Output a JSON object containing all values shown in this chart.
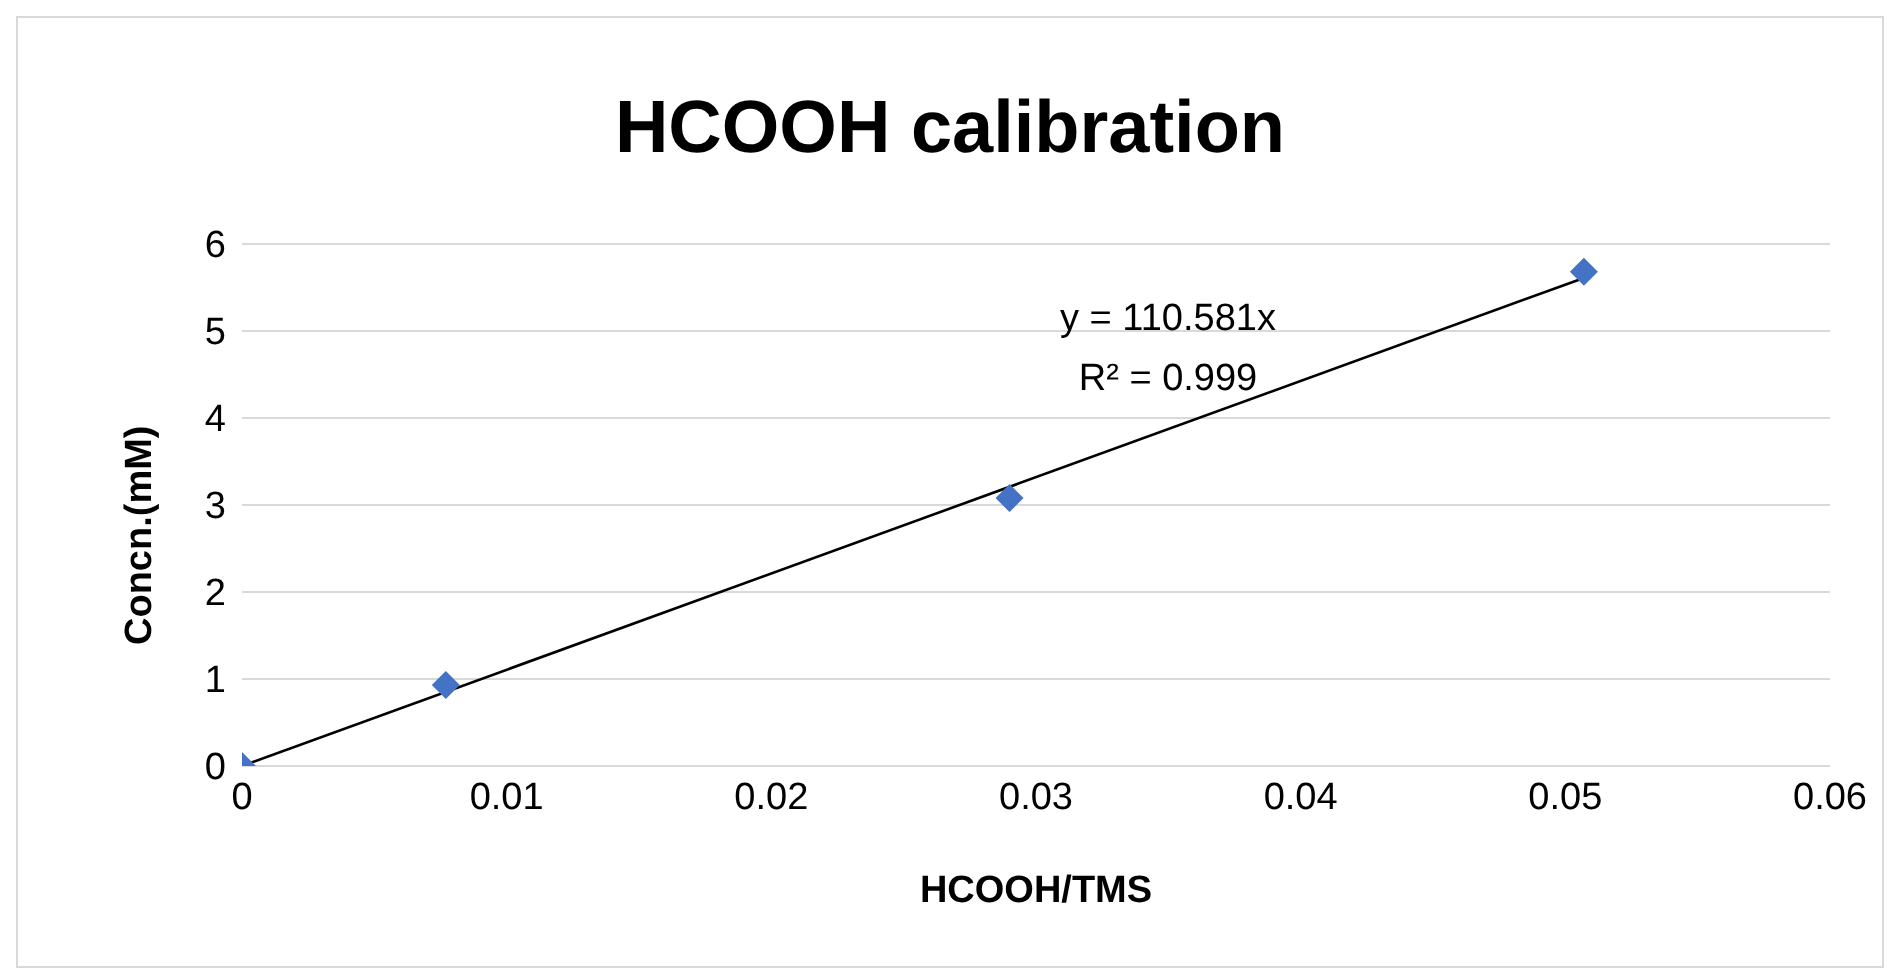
{
  "chart_data": {
    "type": "scatter",
    "title": "HCOOH calibration",
    "xlabel": "HCOOH/TMS",
    "ylabel": "Concn.(mM)",
    "series": [
      {
        "color": "#4472c4",
        "x": [
          0,
          0.0077,
          0.029,
          0.0507
        ],
        "values": [
          0,
          0.93,
          3.08,
          5.68
        ],
        "marker": "diamond"
      },
      {
        "type": "line",
        "color": "#000000",
        "x": [
          0,
          0.0507
        ],
        "values": [
          0,
          5.61
        ],
        "marker": "none",
        "line_style": "solid"
      }
    ],
    "annotations": [
      "y = 110.581x",
      "R² = 0.999"
    ],
    "xlim": [
      0,
      0.06
    ],
    "xticks": [
      0,
      0.01,
      0.02,
      0.03,
      0.04,
      0.05,
      0.06
    ],
    "ylim": [
      0,
      6
    ],
    "yticks": [
      0,
      1,
      2,
      3,
      4,
      5,
      6
    ],
    "grid": "y"
  }
}
